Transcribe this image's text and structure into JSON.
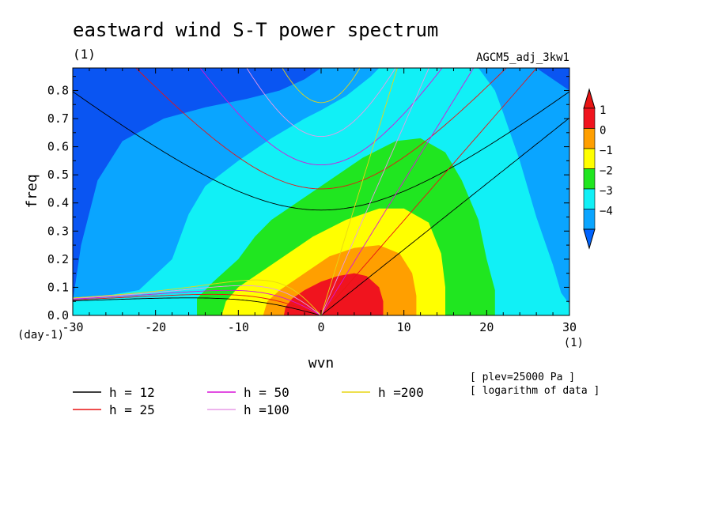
{
  "chart_data": {
    "type": "heatmap",
    "title": "eastward wind S-T power spectrum",
    "title_unit": "(1)",
    "run_name": "AGCM5_adj_3kw1",
    "xlabel": "wvn",
    "ylabel": "freq",
    "x_unit": "(1)",
    "y_unit": "(day-1)",
    "xlim": [
      -30,
      30
    ],
    "ylim": [
      0,
      0.88
    ],
    "x_ticks": [
      "-30",
      "-20",
      "-10",
      "0",
      "10",
      "20",
      "30"
    ],
    "x_tick_values": [
      -30,
      -20,
      -10,
      0,
      10,
      20,
      30
    ],
    "y_ticks": [
      "0.0",
      "0.1",
      "0.2",
      "0.3",
      "0.4",
      "0.5",
      "0.6",
      "0.7",
      "0.8"
    ],
    "y_tick_values": [
      0,
      0.1,
      0.2,
      0.3,
      0.4,
      0.5,
      0.6,
      0.7,
      0.8
    ],
    "colorbar": {
      "labels": [
        "1",
        "0",
        "−1",
        "−2",
        "−3",
        "−4"
      ],
      "levels": [
        1,
        0,
        -1,
        -2,
        -3,
        -4
      ],
      "colors": [
        "#e8141c",
        "#ff9f00",
        "#ffff00",
        "#1ee81e",
        "#14ffff",
        "#0aa0ff",
        "#0050ff",
        "#1464f0"
      ],
      "lowest_color": "#0064ff",
      "highest_color": "#e81414"
    },
    "fill_colors": {
      "deep": "#0a55f2",
      "level_-4": "#0aa5ff",
      "level_-3": "#11f0f6",
      "level_-2": "#20e620",
      "level_-1": "#ffff00",
      "level_0": "#ff9f00",
      "level_1": "#f0141e"
    },
    "annotations": [
      "[ plev=25000 Pa ]",
      "[ logarithm of data ]"
    ],
    "dispersion_curves": [
      {
        "name": "h = 12",
        "h": 12,
        "color": "#000000"
      },
      {
        "name": "h = 25",
        "h": 25,
        "color": "#e81414"
      },
      {
        "name": "h = 50",
        "h": 50,
        "color": "#d814d8"
      },
      {
        "name": "h =100",
        "h": 100,
        "color": "#e79be7"
      },
      {
        "name": "h =200",
        "h": 200,
        "color": "#e8d614"
      }
    ]
  }
}
